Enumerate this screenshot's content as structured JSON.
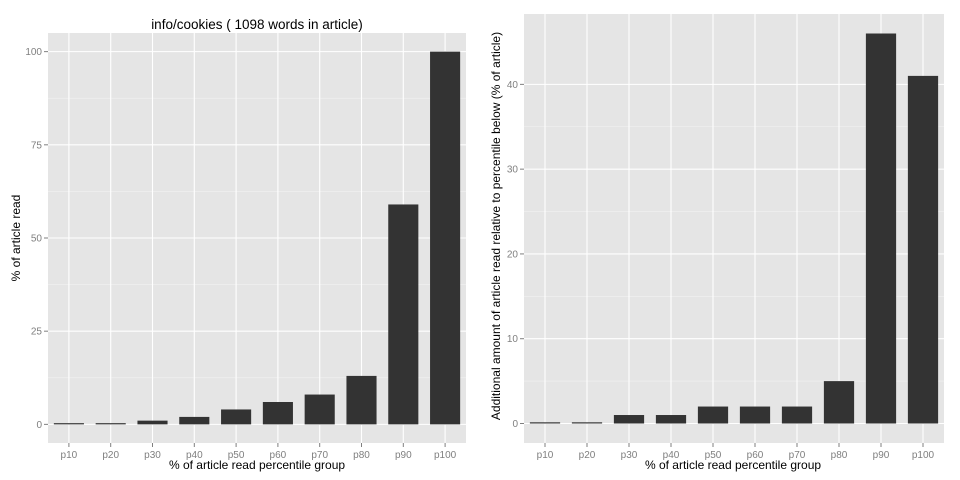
{
  "chart_data": [
    {
      "type": "bar",
      "title": "info/cookies ( 1098 words in article)",
      "xlabel": "% of article read percentile group",
      "ylabel": "% of article read",
      "categories": [
        "p10",
        "p20",
        "p30",
        "p40",
        "p50",
        "p60",
        "p70",
        "p80",
        "p90",
        "p100"
      ],
      "values": [
        0.2,
        0.3,
        1,
        2,
        4,
        6,
        8,
        13,
        59,
        100
      ],
      "ylim": [
        -5,
        105
      ],
      "yticks": [
        0,
        25,
        50,
        75,
        100
      ],
      "grid": true,
      "bar_color": "#333333",
      "panel_color": "#e5e5e5"
    },
    {
      "type": "bar",
      "title": "",
      "xlabel": "% of article read percentile group",
      "ylabel": "Additional amount of article read relative to percentile below (% of article)",
      "categories": [
        "p10",
        "p20",
        "p30",
        "p40",
        "p50",
        "p60",
        "p70",
        "p80",
        "p90",
        "p100"
      ],
      "values": [
        0.1,
        0.1,
        1,
        1,
        2,
        2,
        2,
        5,
        46,
        41
      ],
      "ylim": [
        -2.3,
        48.3
      ],
      "yticks": [
        0,
        10,
        20,
        30,
        40
      ],
      "grid": true,
      "bar_color": "#333333",
      "panel_color": "#e5e5e5"
    }
  ]
}
